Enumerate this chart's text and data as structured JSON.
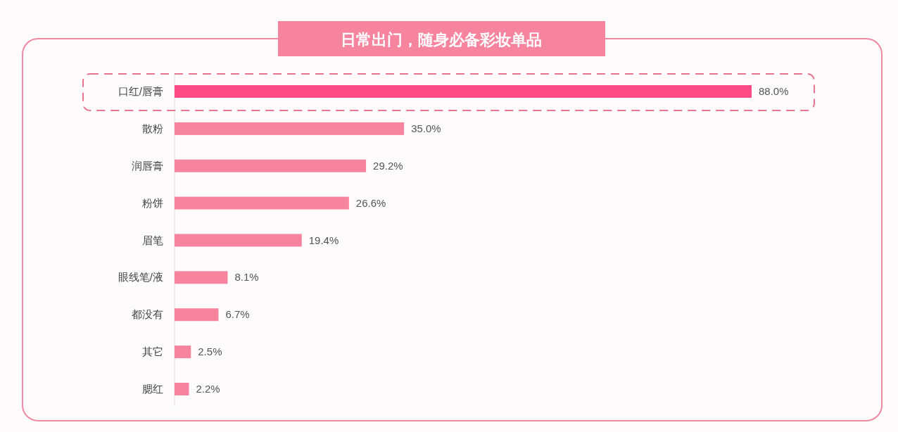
{
  "chart_data": {
    "type": "bar",
    "orientation": "horizontal",
    "title": "日常出门，随身必备彩妆单品",
    "categories": [
      "口红/唇膏",
      "散粉",
      "润唇膏",
      "粉饼",
      "眉笔",
      "眼线笔/液",
      "都没有",
      "其它",
      "腮红"
    ],
    "values": [
      88.0,
      35.0,
      29.2,
      26.6,
      19.4,
      8.1,
      6.7,
      2.5,
      2.2
    ],
    "value_labels": [
      "88.0%",
      "35.0%",
      "29.2%",
      "26.6%",
      "19.4%",
      "8.1%",
      "6.7%",
      "2.5%",
      "2.2%"
    ],
    "colors": [
      "#ff4b84",
      "#f7849f",
      "#f7849f",
      "#f7849f",
      "#f7849f",
      "#f7849f",
      "#f7849f",
      "#f7849f",
      "#f7849f"
    ]
  }
}
